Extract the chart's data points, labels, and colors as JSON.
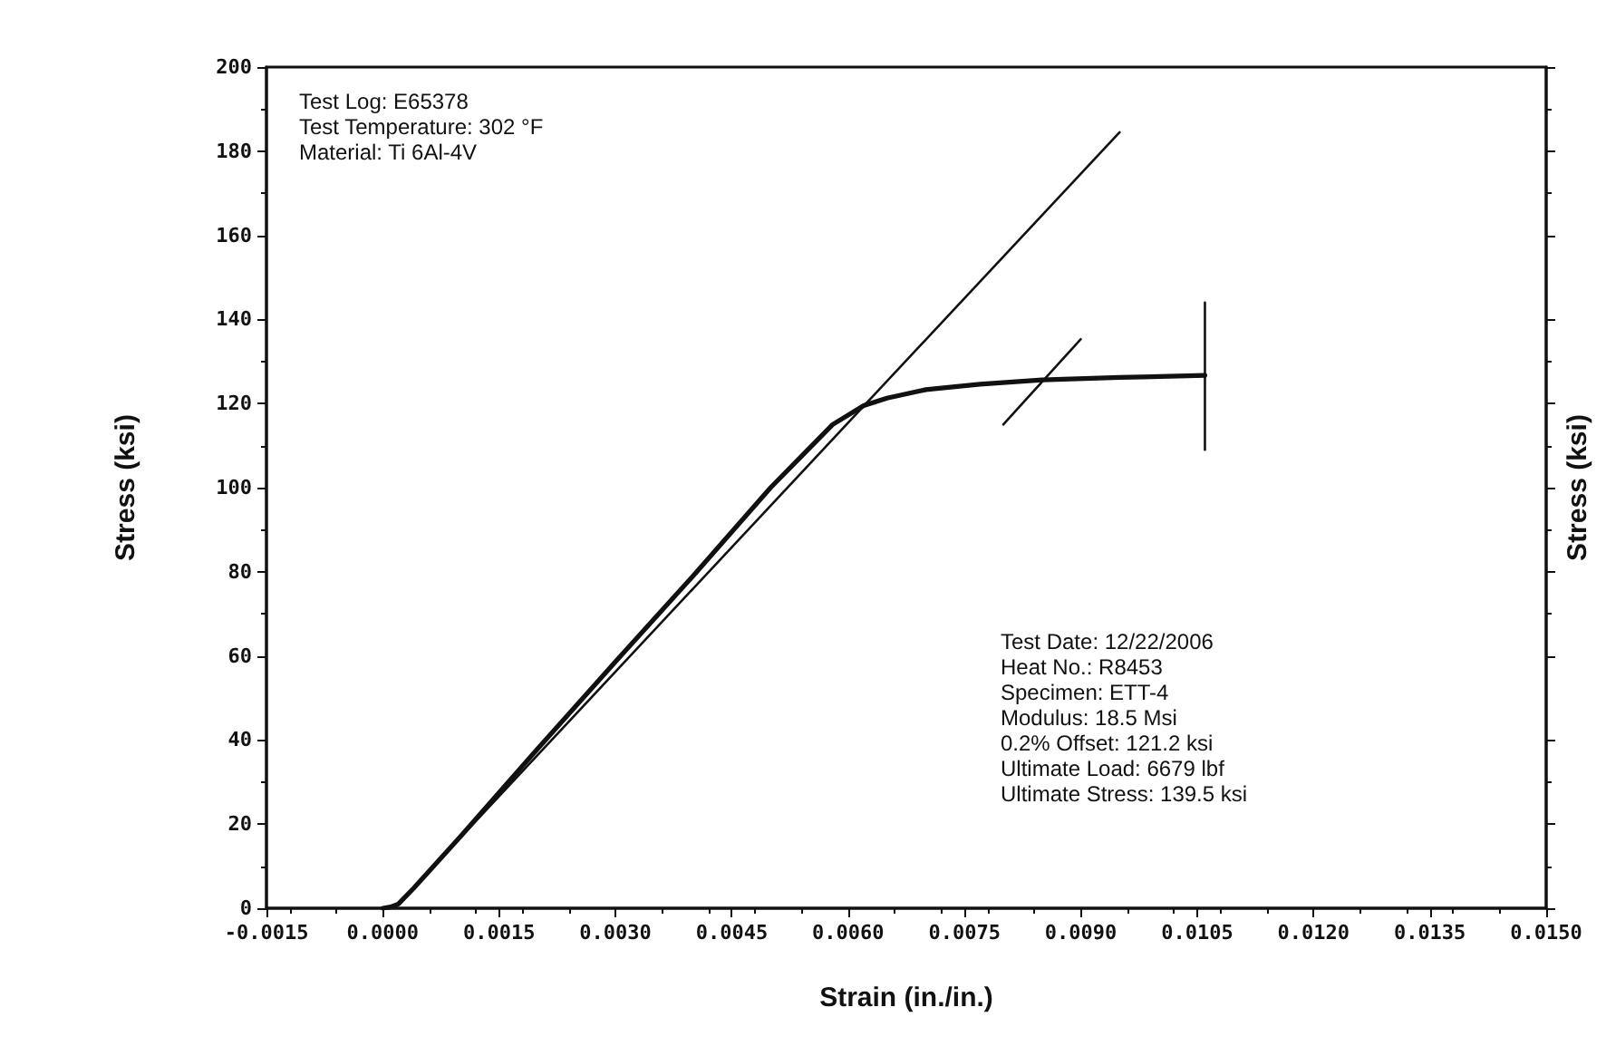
{
  "chart_data": {
    "type": "line",
    "xlabel": "Strain (in./in.)",
    "ylabel": "Stress (ksi)",
    "y2label": "Stress (ksi)",
    "annotations": [
      "Test Log: E65378",
      "Test Temperature: 302 °F",
      "Material: Ti 6Al-4V",
      "Test Date: 12/22/2006",
      "Heat No.: R8453",
      "Specimen: ETT-4",
      "Modulus: 18.5 Msi",
      "0.2% Offset: 121.2 ksi",
      "Ultimate Load: 6679 lbf",
      "Ultimate Stress: 139.5 ksi"
    ],
    "series": [
      {
        "color": "#111111",
        "x": [
          0,
          0.0001,
          0.0002,
          0.0004,
          0.001,
          0.002,
          0.003,
          0.004,
          0.005,
          0.0058,
          0.0062,
          0.0065,
          0.007,
          0.0077,
          0.0085,
          0.0095,
          0.0106
        ],
        "values": [
          0,
          0.3,
          1,
          4.8,
          17,
          38,
          58.6,
          79,
          100,
          115,
          119.5,
          121.3,
          123.3,
          124.6,
          125.6,
          126.2,
          126.7
        ]
      },
      {
        "color": "#111111",
        "x": [
          0.00015,
          0.0095
        ],
        "values": [
          0,
          184.5
        ]
      },
      {
        "color": "#111111",
        "x": [
          0.008,
          0.009
        ],
        "values": [
          115,
          135.3
        ]
      },
      {
        "color": "#111111",
        "x": [
          0.0106,
          0.0106
        ],
        "values": [
          109,
          144
        ]
      }
    ],
    "xlim": [
      -0.0015,
      0.015
    ],
    "xticks": [
      {
        "value": -0.0015,
        "label": "-0.0015"
      },
      {
        "value": 0,
        "label": "0.0000"
      },
      {
        "value": 0.0015,
        "label": "0.0015"
      },
      {
        "value": 0.003,
        "label": "0.0030"
      },
      {
        "value": 0.0045,
        "label": "0.0045"
      },
      {
        "value": 0.006,
        "label": "0.0060"
      },
      {
        "value": 0.0075,
        "label": "0.0075"
      },
      {
        "value": 0.009,
        "label": "0.0090"
      },
      {
        "value": 0.0105,
        "label": "0.0105"
      },
      {
        "value": 0.012,
        "label": "0.0120"
      },
      {
        "value": 0.0135,
        "label": "0.0135"
      },
      {
        "value": 0.015,
        "label": "0.0150"
      }
    ],
    "ylim": [
      0,
      200
    ],
    "yticks": [
      0,
      20,
      40,
      60,
      80,
      100,
      120,
      140,
      160,
      180,
      200
    ],
    "grid": false,
    "marker": "none",
    "line_style": "solid"
  }
}
